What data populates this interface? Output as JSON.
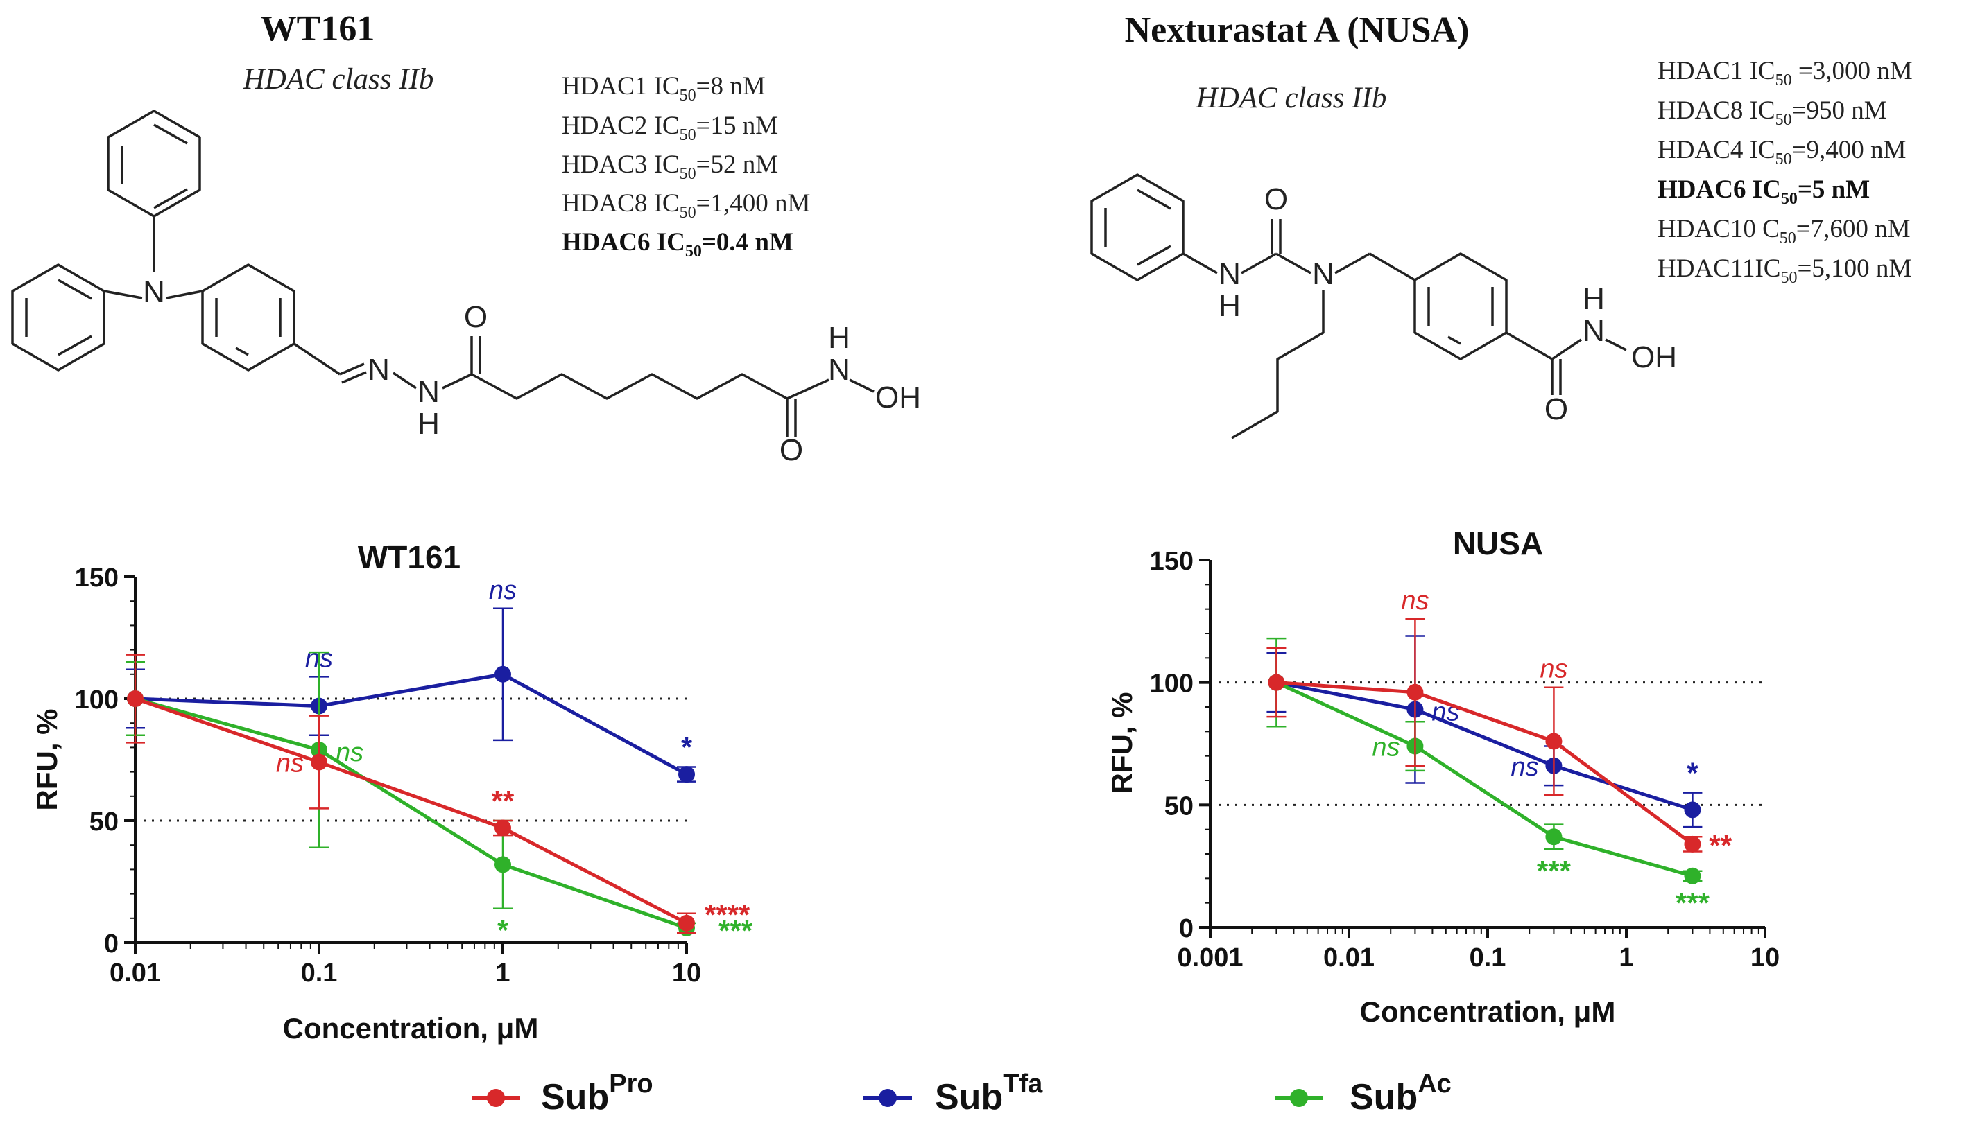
{
  "compounds": [
    {
      "name": "WT161",
      "class_label": "HDAC class IIb",
      "ic50": [
        {
          "iso": "HDAC1",
          "pre": " IC",
          "sub": "50",
          "post": "=8 nM",
          "bold": false
        },
        {
          "iso": "HDAC2",
          "pre": " IC",
          "sub": "50",
          "post": "=15 nM",
          "bold": false
        },
        {
          "iso": "HDAC3",
          "pre": " IC",
          "sub": "50",
          "post": "=52 nM",
          "bold": false
        },
        {
          "iso": "HDAC8",
          "pre": " IC",
          "sub": "50",
          "post": "=1,400 nM",
          "bold": false
        },
        {
          "iso": "HDAC6",
          "pre": " IC",
          "sub": "50",
          "post": "=0.4 nM",
          "bold": true
        }
      ],
      "structure_atoms": [
        "N",
        "N",
        "N",
        "H",
        "O",
        "H",
        "N",
        "OH",
        "O"
      ]
    },
    {
      "name": "Nexturastat A (NUSA)",
      "class_label": "HDAC class IIb",
      "ic50": [
        {
          "iso": "HDAC1",
          "pre": " IC",
          "sub": "50",
          "post": " =3,000 nM",
          "bold": false
        },
        {
          "iso": "HDAC8",
          "pre": " IC",
          "sub": "50",
          "post": "=950 nM",
          "bold": false
        },
        {
          "iso": "HDAC4",
          "pre": " IC",
          "sub": "50",
          "post": "=9,400 nM",
          "bold": false
        },
        {
          "iso": "HDAC6",
          "pre": " IC",
          "sub": "50",
          "post": "=5 nM",
          "bold": true
        },
        {
          "iso": "HDAC10",
          "pre": " C",
          "sub": "50",
          "post": "=7,600 nM",
          "bold": false
        },
        {
          "iso": "HDAC11",
          "pre": "IC",
          "sub": "50",
          "post": "=5,100 nM",
          "bold": false
        }
      ],
      "structure_atoms": [
        "O",
        "N",
        "H",
        "N",
        "H",
        "N",
        "OH",
        "O"
      ]
    }
  ],
  "legend": [
    {
      "base": "Sub",
      "sup": "Pro",
      "color": "#d8282a"
    },
    {
      "base": "Sub",
      "sup": "Tfa",
      "color": "#1a1ea0"
    },
    {
      "base": "Sub",
      "sup": "Ac",
      "color": "#2fb12a"
    }
  ],
  "chart_data": [
    {
      "type": "line",
      "title": "WT161",
      "xlabel": "Concentration, μM",
      "ylabel": "RFU, %",
      "xscale": "log",
      "xlim": [
        0.01,
        10
      ],
      "ylim": [
        0,
        150
      ],
      "xticks": [
        0.01,
        0.1,
        1,
        10
      ],
      "xtick_labels": [
        "0.01",
        "0.1",
        "1",
        "10"
      ],
      "yticks": [
        0,
        50,
        100,
        150
      ],
      "ytick_labels": [
        "0",
        "50",
        "100",
        "150"
      ],
      "reference_lines": [
        100,
        50
      ],
      "series": [
        {
          "name": "SubTfa",
          "color": "#1a1ea0",
          "x": [
            0.01,
            0.1,
            1,
            10
          ],
          "y": [
            100,
            97,
            110,
            69
          ],
          "err": [
            12,
            12,
            27,
            3
          ],
          "annotations": [
            "",
            "ns",
            "ns",
            "*"
          ],
          "ann_side": [
            "",
            "above",
            "above",
            "above"
          ]
        },
        {
          "name": "SubAc",
          "color": "#2fb12a",
          "x": [
            0.01,
            0.1,
            1,
            10
          ],
          "y": [
            100,
            79,
            32,
            6
          ],
          "err": [
            15,
            40,
            18,
            2
          ],
          "annotations": [
            "",
            "ns",
            "*",
            "***"
          ],
          "ann_side": [
            "",
            "right",
            "below",
            "right-low"
          ]
        },
        {
          "name": "SubPro",
          "color": "#d8282a",
          "x": [
            0.01,
            0.1,
            1,
            10
          ],
          "y": [
            100,
            74,
            47,
            8
          ],
          "err": [
            18,
            19,
            3,
            4
          ],
          "annotations": [
            "",
            "ns",
            "**",
            "****"
          ],
          "ann_side": [
            "",
            "left",
            "above",
            "right-high"
          ]
        }
      ]
    },
    {
      "type": "line",
      "title": "NUSA",
      "xlabel": "Concentration, μM",
      "ylabel": "RFU, %",
      "xscale": "log",
      "xlim": [
        0.001,
        10
      ],
      "ylim": [
        0,
        150
      ],
      "xticks": [
        0.001,
        0.01,
        0.1,
        1,
        10
      ],
      "xtick_labels": [
        "0.001",
        "0.01",
        "0.1",
        "1",
        "10"
      ],
      "yticks": [
        0,
        50,
        100,
        150
      ],
      "ytick_labels": [
        "0",
        "50",
        "100",
        "150"
      ],
      "reference_lines": [
        100,
        50
      ],
      "series": [
        {
          "name": "SubTfa",
          "color": "#1a1ea0",
          "x": [
            0.003,
            0.03,
            0.3,
            3
          ],
          "y": [
            100,
            89,
            66,
            48
          ],
          "err": [
            12,
            30,
            8,
            7
          ],
          "annotations": [
            "",
            "ns",
            "ns",
            "*"
          ],
          "ann_side": [
            "",
            "right",
            "left",
            "above"
          ]
        },
        {
          "name": "SubAc",
          "color": "#2fb12a",
          "x": [
            0.003,
            0.03,
            0.3,
            3
          ],
          "y": [
            100,
            74,
            37,
            21
          ],
          "err": [
            18,
            10,
            5,
            2
          ],
          "annotations": [
            "",
            "ns",
            "***",
            "***"
          ],
          "ann_side": [
            "",
            "left",
            "below",
            "below"
          ]
        },
        {
          "name": "SubPro",
          "color": "#d8282a",
          "x": [
            0.003,
            0.03,
            0.3,
            3
          ],
          "y": [
            100,
            96,
            76,
            34
          ],
          "err": [
            14,
            30,
            22,
            3
          ],
          "annotations": [
            "",
            "ns",
            "ns",
            "**"
          ],
          "ann_side": [
            "",
            "above",
            "above",
            "right"
          ]
        }
      ]
    }
  ]
}
